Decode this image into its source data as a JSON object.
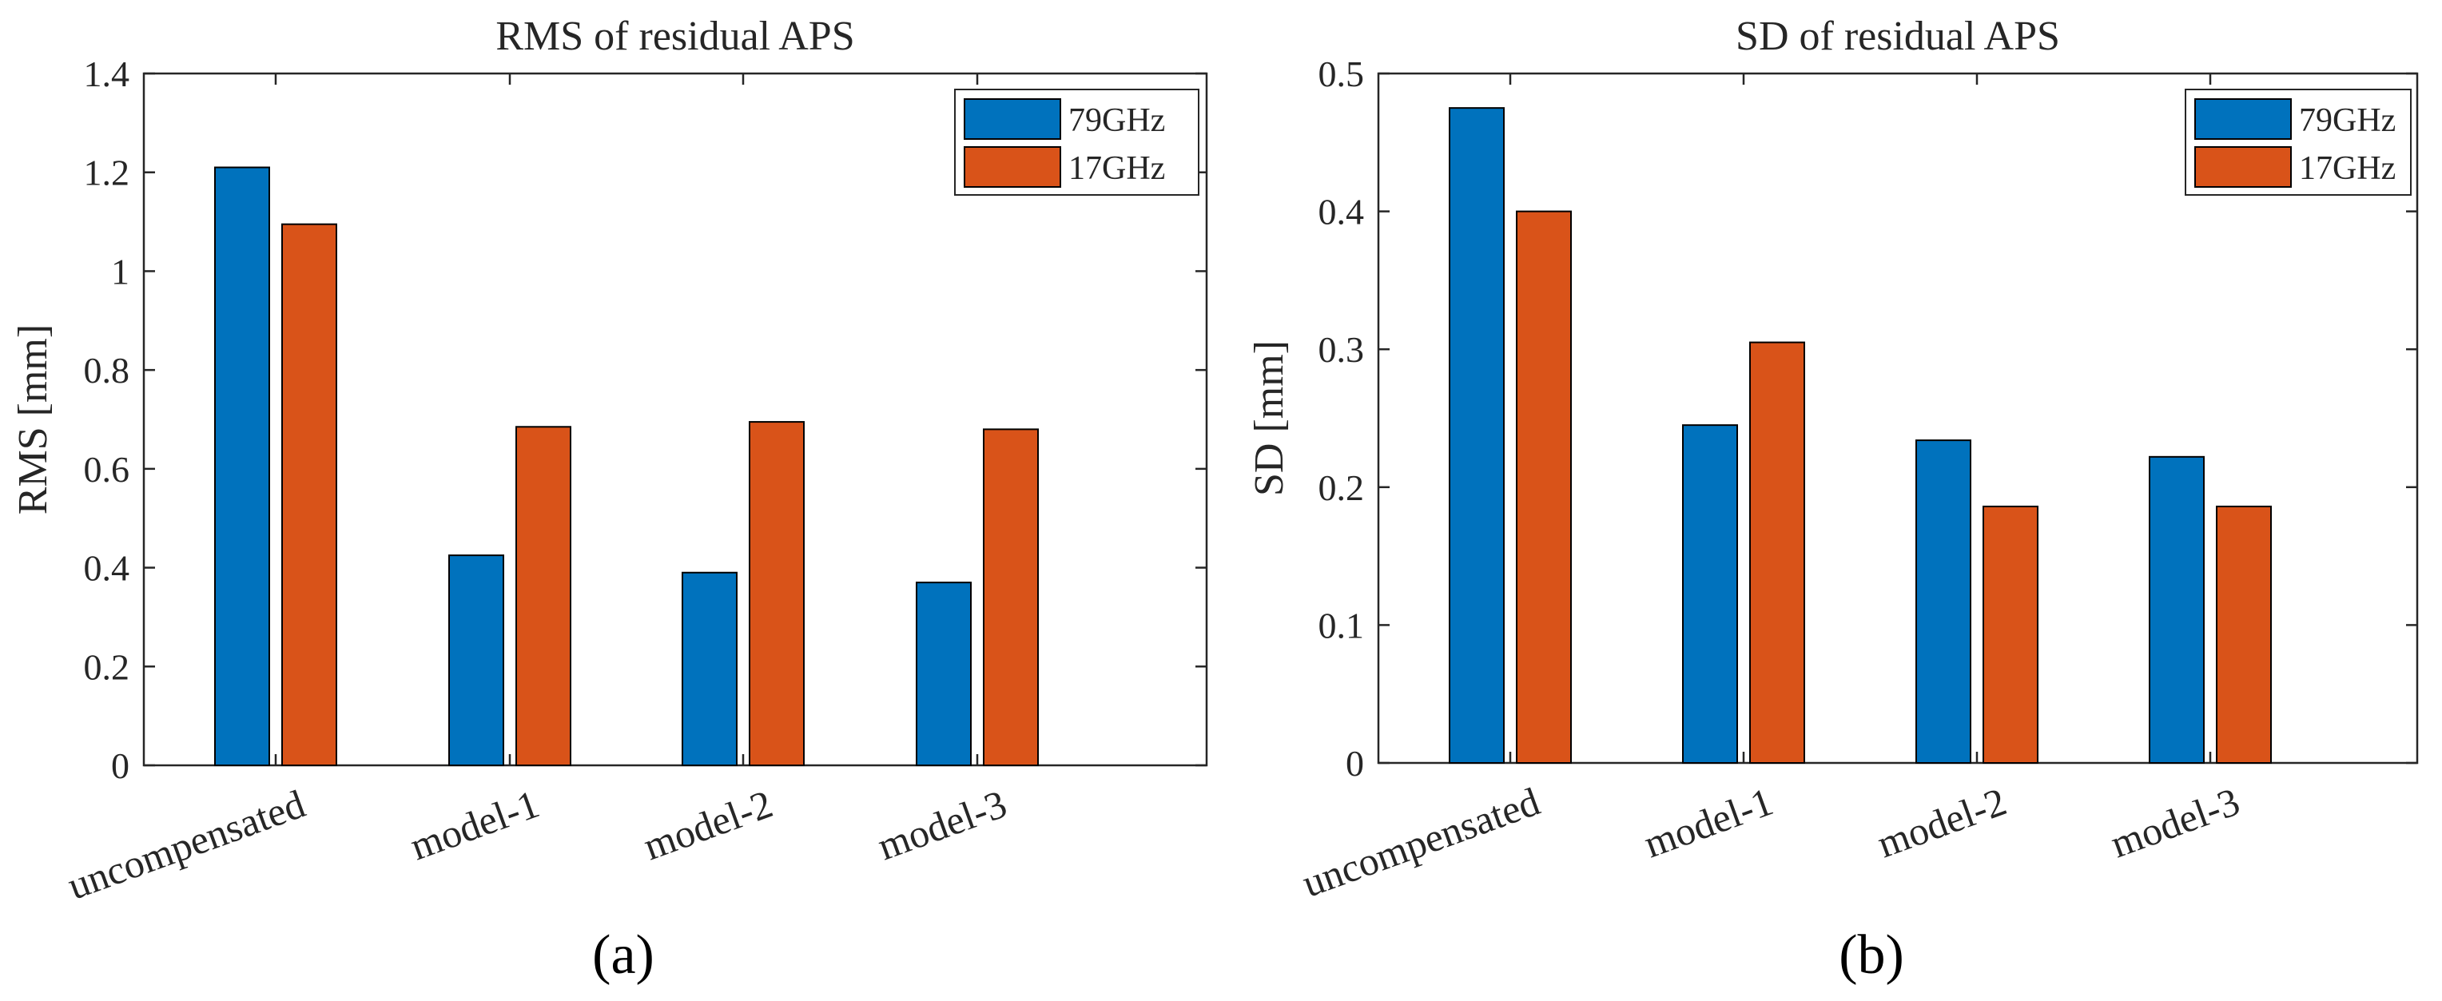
{
  "chart_data": [
    {
      "type": "bar",
      "panel_label": "(a)",
      "title": "RMS of residual APS",
      "xlabel": "",
      "ylabel": "RMS [mm]",
      "ylim": [
        0,
        1.4
      ],
      "yticks": [
        "0",
        "0.2",
        "0.4",
        "0.6",
        "0.8",
        "1",
        "1.2",
        "1.4"
      ],
      "ytick_values": [
        0,
        0.2,
        0.4,
        0.6,
        0.8,
        1.0,
        1.2,
        1.4
      ],
      "categories": [
        "uncompensated",
        "model-1",
        "model-2",
        "model-3"
      ],
      "series": [
        {
          "name": "79GHz",
          "color": "#0072BD",
          "values": [
            1.21,
            0.425,
            0.39,
            0.37
          ]
        },
        {
          "name": "17GHz",
          "color": "#D95319",
          "values": [
            1.095,
            0.685,
            0.695,
            0.68
          ]
        }
      ],
      "legend_position": "top-right",
      "grid": false
    },
    {
      "type": "bar",
      "panel_label": "(b)",
      "title": "SD of residual APS",
      "xlabel": "",
      "ylabel": "SD [mm]",
      "ylim": [
        0,
        0.5
      ],
      "yticks": [
        "0",
        "0.1",
        "0.2",
        "0.3",
        "0.4",
        "0.5"
      ],
      "ytick_values": [
        0,
        0.1,
        0.2,
        0.3,
        0.4,
        0.5
      ],
      "categories": [
        "uncompensated",
        "model-1",
        "model-2",
        "model-3"
      ],
      "series": [
        {
          "name": "79GHz",
          "color": "#0072BD",
          "values": [
            0.475,
            0.245,
            0.234,
            0.222
          ]
        },
        {
          "name": "17GHz",
          "color": "#D95319",
          "values": [
            0.4,
            0.305,
            0.186,
            0.186
          ]
        }
      ],
      "legend_position": "top-right",
      "grid": false
    }
  ]
}
